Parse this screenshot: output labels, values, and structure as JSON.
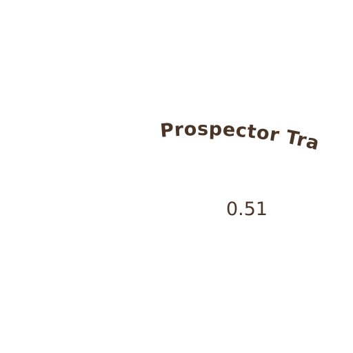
{
  "map": {
    "background_color": "#ffffff",
    "label_color": "#4a3526",
    "trail": {
      "name": "Prospector Trail",
      "distance": "0.51"
    }
  }
}
